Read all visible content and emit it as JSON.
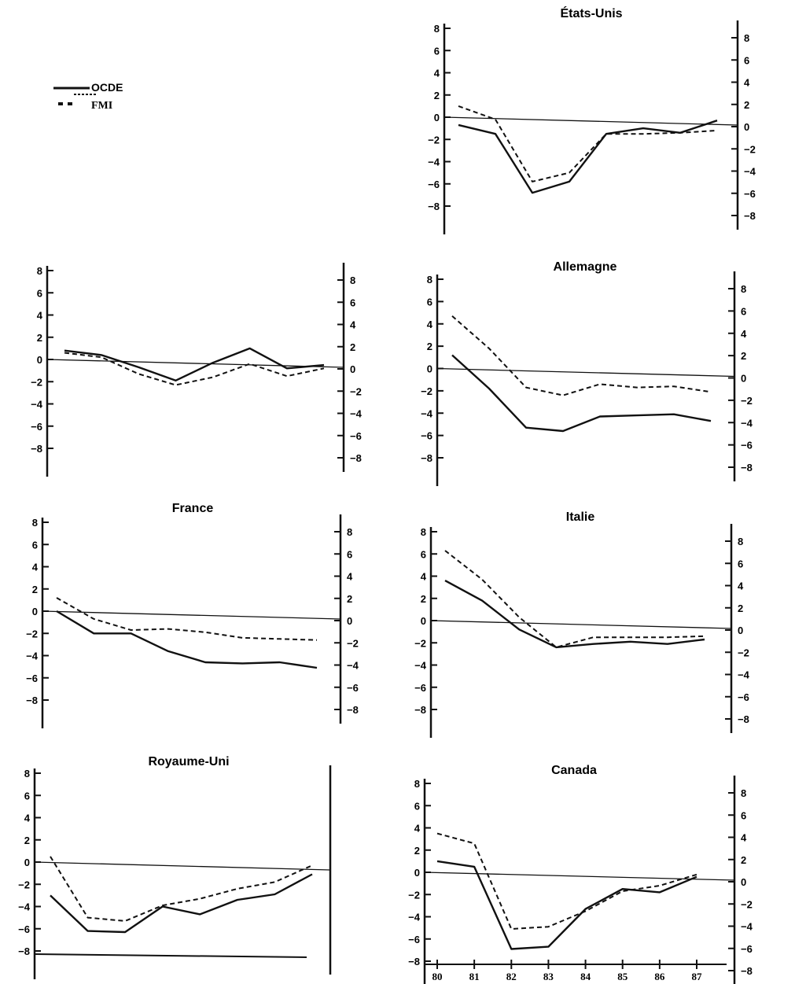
{
  "legend": {
    "items": [
      {
        "label": "OCDE",
        "style": "solid"
      },
      {
        "label": "FMI",
        "style": "dashed"
      }
    ]
  },
  "x_labels": [
    "80",
    "81",
    "82",
    "83",
    "84",
    "85",
    "86",
    "87"
  ],
  "y_ticks": [
    "8",
    "6",
    "4",
    "2",
    "0",
    "−2",
    "−4",
    "−6",
    "−8"
  ],
  "chart_data": [
    {
      "type": "line",
      "title": "États-Unis",
      "x": [
        80,
        81,
        82,
        83,
        84,
        85,
        86,
        87
      ],
      "ylim": [
        -8,
        8
      ],
      "series": [
        {
          "name": "OCDE",
          "values": [
            -0.7,
            -1.5,
            -6.8,
            -5.8,
            -1.5,
            -1.0,
            -1.4,
            -0.3
          ]
        },
        {
          "name": "FMI",
          "values": [
            1.0,
            -0.2,
            -5.8,
            -5.0,
            -1.5,
            -1.5,
            -1.4,
            -1.2
          ]
        }
      ]
    },
    {
      "type": "line",
      "title": "",
      "x": [
        80,
        81,
        82,
        83,
        84,
        85,
        86,
        87
      ],
      "ylim": [
        -8,
        8
      ],
      "series": [
        {
          "name": "OCDE",
          "values": [
            0.8,
            0.4,
            -0.7,
            -1.9,
            -0.3,
            1.0,
            -0.8,
            -0.5
          ]
        },
        {
          "name": "FMI",
          "values": [
            0.6,
            0.2,
            -1.3,
            -2.3,
            -1.6,
            -0.4,
            -1.5,
            -0.8
          ]
        }
      ]
    },
    {
      "type": "line",
      "title": "Allemagne",
      "x": [
        80,
        81,
        82,
        83,
        84,
        85,
        86,
        87
      ],
      "ylim": [
        -8,
        8
      ],
      "series": [
        {
          "name": "OCDE",
          "values": [
            1.2,
            -1.8,
            -5.3,
            -5.6,
            -4.3,
            -4.2,
            -4.1,
            -4.7
          ]
        },
        {
          "name": "FMI",
          "values": [
            4.7,
            1.8,
            -1.7,
            -2.4,
            -1.4,
            -1.7,
            -1.6,
            -2.1
          ]
        }
      ]
    },
    {
      "type": "line",
      "title": "France",
      "x": [
        80,
        81,
        82,
        83,
        84,
        85,
        86,
        87
      ],
      "ylim": [
        -8,
        8
      ],
      "series": [
        {
          "name": "OCDE",
          "values": [
            0.0,
            -2.0,
            -2.0,
            -3.6,
            -4.6,
            -4.7,
            -4.6,
            -5.1
          ]
        },
        {
          "name": "FMI",
          "values": [
            1.2,
            -0.7,
            -1.7,
            -1.6,
            -1.9,
            -2.4,
            -2.5,
            -2.6
          ]
        }
      ]
    },
    {
      "type": "line",
      "title": "Italie",
      "x": [
        80,
        81,
        82,
        83,
        84,
        85,
        86,
        87
      ],
      "ylim": [
        -8,
        8
      ],
      "series": [
        {
          "name": "OCDE",
          "values": [
            3.6,
            1.8,
            -0.8,
            -2.4,
            -2.1,
            -1.9,
            -2.1,
            -1.7
          ]
        },
        {
          "name": "FMI",
          "values": [
            6.3,
            3.7,
            0.3,
            -2.4,
            -1.5,
            -1.5,
            -1.5,
            -1.4
          ]
        }
      ]
    },
    {
      "type": "line",
      "title": "Royaume-Uni",
      "x": [
        80,
        81,
        82,
        83,
        84,
        85,
        86,
        87
      ],
      "ylim": [
        -8,
        8
      ],
      "series": [
        {
          "name": "OCDE",
          "values": [
            -3.0,
            -6.2,
            -6.3,
            -4.0,
            -4.7,
            -3.4,
            -2.9,
            -1.1
          ]
        },
        {
          "name": "FMI",
          "values": [
            0.5,
            -5.0,
            -5.3,
            -3.9,
            -3.3,
            -2.4,
            -1.8,
            -0.3
          ]
        }
      ]
    },
    {
      "type": "line",
      "title": "Canada",
      "x": [
        80,
        81,
        82,
        83,
        84,
        85,
        86,
        87
      ],
      "ylim": [
        -8,
        8
      ],
      "series": [
        {
          "name": "OCDE",
          "values": [
            1.0,
            0.5,
            -6.9,
            -6.7,
            -3.3,
            -1.5,
            -1.8,
            -0.4
          ]
        },
        {
          "name": "FMI",
          "values": [
            3.5,
            2.6,
            -5.1,
            -4.9,
            -3.5,
            -1.7,
            -1.2,
            -0.2
          ]
        }
      ]
    }
  ]
}
